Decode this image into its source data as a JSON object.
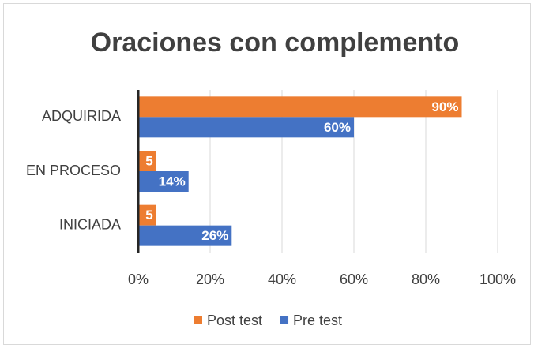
{
  "chart_data": {
    "type": "hbar",
    "title": "Oraciones con complemento",
    "categories": [
      "ADQUIRIDA",
      "EN PROCESO",
      "INICIADA"
    ],
    "series": [
      {
        "name": "Post test",
        "color": "#ED7D31",
        "values": [
          90,
          5,
          5
        ],
        "value_labels": [
          "90%",
          "5",
          "5"
        ]
      },
      {
        "name": "Pre test",
        "color": "#4472C4",
        "values": [
          60,
          14,
          26
        ],
        "value_labels": [
          "60%",
          "14%",
          "26%"
        ]
      }
    ],
    "xlim": [
      0,
      100
    ],
    "xticks": [
      {
        "value": 0,
        "label": "0%"
      },
      {
        "value": 20,
        "label": "20%"
      },
      {
        "value": 40,
        "label": "40%"
      },
      {
        "value": 60,
        "label": "60%"
      },
      {
        "value": 80,
        "label": "80%"
      },
      {
        "value": 100,
        "label": "100%"
      }
    ],
    "grid": true,
    "legend": "bottom"
  }
}
